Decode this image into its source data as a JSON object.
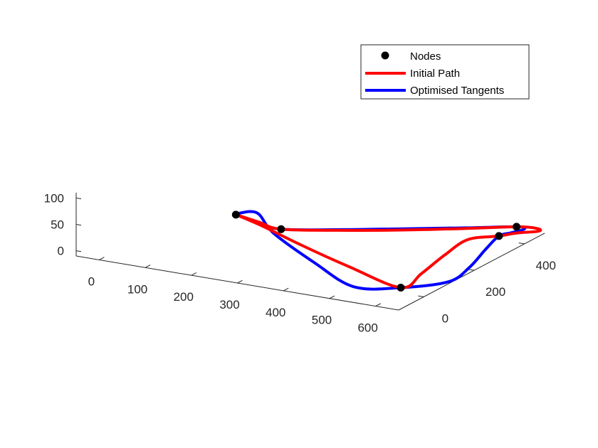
{
  "chart_data": {
    "type": "line",
    "title": "",
    "xlabel": "",
    "ylabel": "",
    "zlabel": "",
    "view": "3d",
    "grid": false,
    "legend": {
      "placement": "top-right",
      "entries": [
        {
          "label": "Nodes",
          "marker": "dot",
          "color": "#000000"
        },
        {
          "label": "Initial Path",
          "marker": "line",
          "color": "#ff0000"
        },
        {
          "label": "Optimised Tangents",
          "marker": "line",
          "color": "#0000ff"
        }
      ]
    },
    "axes": {
      "x": {
        "ticks": [
          0,
          100,
          200,
          300,
          400,
          500,
          600
        ],
        "lim": [
          -50,
          650
        ]
      },
      "y": {
        "ticks": [
          0,
          200,
          400
        ],
        "lim": [
          -100,
          480
        ]
      },
      "z": {
        "ticks": [
          0,
          50,
          100
        ],
        "lim": [
          -10,
          110
        ]
      }
    },
    "nodes": {
      "name": "Nodes",
      "color": "#000000",
      "points": [
        [
          100,
          260,
          0
        ],
        [
          220,
          220,
          0
        ],
        [
          600,
          460,
          0
        ],
        [
          600,
          390,
          0
        ],
        [
          600,
          0,
          0
        ]
      ]
    },
    "series": [
      {
        "name": "Initial Path",
        "color": "#ff0000",
        "points": [
          [
            100,
            260,
            0
          ],
          [
            160,
            240,
            0
          ],
          [
            220,
            220,
            0
          ],
          [
            320,
            270,
            0
          ],
          [
            420,
            330,
            0
          ],
          [
            520,
            400,
            0
          ],
          [
            600,
            460,
            0
          ],
          [
            640,
            470,
            0
          ],
          [
            650,
            455,
            0
          ],
          [
            620,
            425,
            0
          ],
          [
            600,
            390,
            0
          ],
          [
            560,
            340,
            0
          ],
          [
            570,
            230,
            0
          ],
          [
            590,
            100,
            0
          ],
          [
            600,
            0,
            0
          ],
          [
            450,
            70,
            0
          ],
          [
            300,
            150,
            0
          ],
          [
            180,
            220,
            0
          ],
          [
            100,
            260,
            0
          ]
        ]
      },
      {
        "name": "Optimised Tangents",
        "color": "#0000ff",
        "points": [
          [
            100,
            260,
            0
          ],
          [
            160,
            235,
            0
          ],
          [
            220,
            220,
            0
          ],
          [
            320,
            275,
            0
          ],
          [
            420,
            340,
            0
          ],
          [
            520,
            405,
            0
          ],
          [
            600,
            460,
            0
          ],
          [
            620,
            455,
            0
          ],
          [
            610,
            420,
            0
          ],
          [
            600,
            390,
            0
          ],
          [
            620,
            300,
            0
          ],
          [
            650,
            180,
            0
          ],
          [
            660,
            80,
            0
          ],
          [
            600,
            0,
            0
          ],
          [
            520,
            -40,
            0
          ],
          [
            380,
            60,
            0
          ],
          [
            220,
            190,
            0
          ],
          [
            130,
            290,
            0
          ],
          [
            100,
            270,
            0
          ],
          [
            100,
            260,
            0
          ]
        ]
      }
    ]
  }
}
